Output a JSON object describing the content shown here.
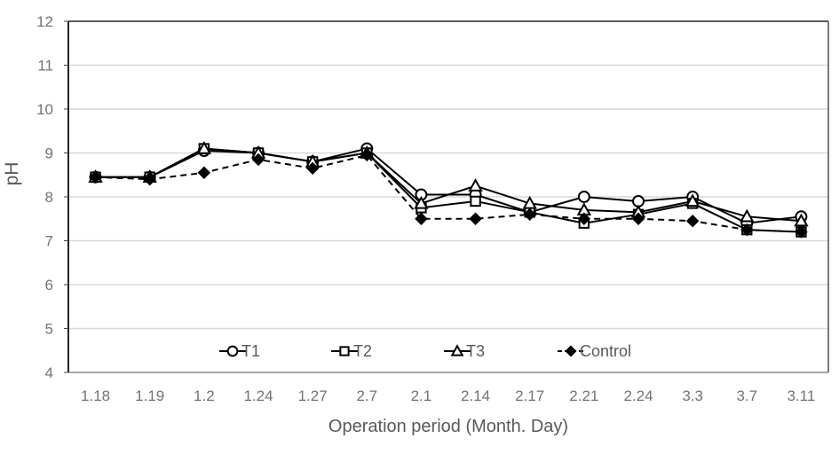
{
  "figure": {
    "background": "#ffffff"
  },
  "chart_data": {
    "type": "line",
    "title": "",
    "xlabel": "Operation period (Month. Day)",
    "ylabel": "pH",
    "ylim": [
      4,
      12
    ],
    "ytick_step": 1,
    "grid": true,
    "legend_position": "bottom-inside",
    "categories": [
      "1.18",
      "1.19",
      "1.2",
      "1.24",
      "1.27",
      "2.7",
      "2.1",
      "2.14",
      "2.17",
      "2.21",
      "2.24",
      "3.3",
      "3.7",
      "3.11"
    ],
    "series": [
      {
        "name": "T1",
        "marker": "open-circle",
        "line": "solid",
        "color": "#000000",
        "values": [
          8.45,
          8.45,
          9.05,
          9.0,
          8.8,
          9.1,
          8.05,
          8.05,
          7.65,
          8.0,
          7.9,
          8.0,
          7.4,
          7.55
        ]
      },
      {
        "name": "T2",
        "marker": "open-square",
        "line": "solid",
        "color": "#000000",
        "values": [
          8.45,
          8.45,
          9.1,
          9.0,
          8.8,
          9.0,
          7.75,
          7.9,
          7.65,
          7.4,
          7.6,
          7.85,
          7.25,
          7.2
        ]
      },
      {
        "name": "T3",
        "marker": "open-triangle",
        "line": "solid",
        "color": "#000000",
        "values": [
          8.45,
          8.45,
          9.1,
          9.0,
          8.8,
          9.0,
          7.85,
          8.25,
          7.85,
          7.7,
          7.65,
          7.9,
          7.55,
          7.45
        ]
      },
      {
        "name": "Control",
        "marker": "filled-diamond",
        "line": "dashed",
        "color": "#000000",
        "values": [
          8.45,
          8.4,
          8.55,
          8.85,
          8.65,
          8.95,
          7.5,
          7.5,
          7.6,
          7.5,
          7.5,
          7.45,
          7.25,
          7.2
        ]
      }
    ],
    "colors": {
      "gridline": "#d9d9d9",
      "axis_line": "#262626",
      "border_right": "#595959",
      "border_bottom": "#8c8c8c",
      "tick_mark": "#404040",
      "tick_label": "#737373",
      "axis_title": "#595959",
      "series": "#000000"
    }
  }
}
